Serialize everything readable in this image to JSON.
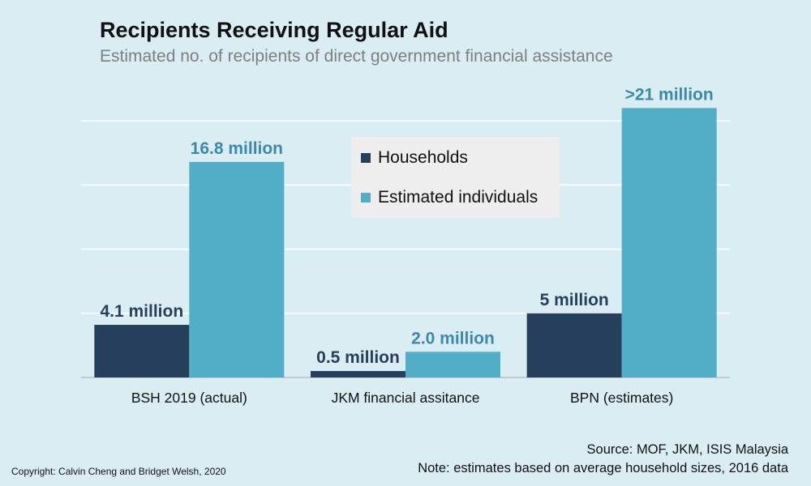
{
  "chart_data": {
    "type": "bar",
    "title": "Recipients Receiving Regular Aid",
    "subtitle": "Estimated no. of recipients of direct government financial assistance",
    "categories": [
      "BSH 2019 (actual)",
      "JKM financial assitance",
      "BPN (estimates)"
    ],
    "series": [
      {
        "name": "Households",
        "color": "#253f5d",
        "values": [
          4.1,
          0.5,
          5
        ],
        "labels": [
          "4.1 million",
          "0.5 million",
          "5 million"
        ]
      },
      {
        "name": "Estimated individuals",
        "color": "#52aec6",
        "values": [
          16.8,
          2.0,
          21
        ],
        "labels": [
          "16.8 million",
          "2.0 million",
          ">21 million"
        ]
      }
    ],
    "ylim": [
      0,
      25
    ],
    "grid": true,
    "legend_position": "center-top"
  },
  "source": "Source: MOF, JKM, ISIS Malaysia",
  "note": "Note: estimates based on average household sizes, 2016 data",
  "copyright": "Copyright: Calvin Cheng and Bridget Welsh, 2020"
}
